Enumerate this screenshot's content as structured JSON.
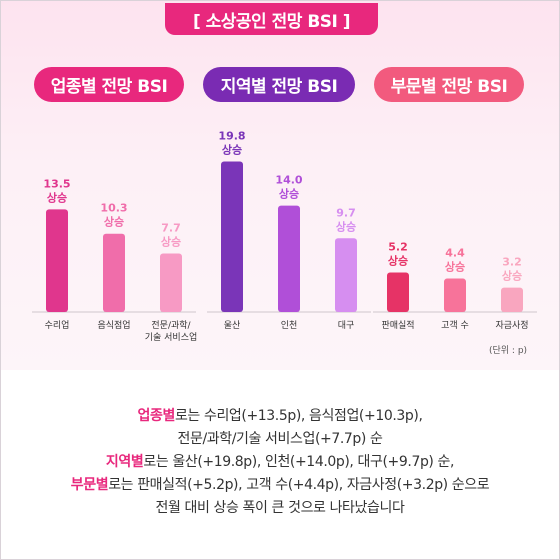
{
  "title": "[ 소상공인 전망 BSI ]",
  "tabs": {
    "industry": "업종별 전망 BSI",
    "region": "지역별 전망 BSI",
    "sector": "부문별 전망 BSI"
  },
  "unit": "(단위 : p)",
  "rise_label": "상승",
  "chart_data": {
    "type": "bar",
    "groups": [
      {
        "name": "업종별 전망 BSI",
        "categories": [
          "수리업",
          "음식점업",
          "전문/과학/기술 서비스업"
        ],
        "category_lines": [
          [
            "수리업"
          ],
          [
            "음식점업"
          ],
          [
            "전문/과학/",
            "기술 서비스업"
          ]
        ],
        "values": [
          13.5,
          10.3,
          7.7
        ],
        "colors": [
          "#e0368d",
          "#f06daa",
          "#f79ac4"
        ],
        "label_colors": [
          "#e0368d",
          "#f06daa",
          "#f79ac4"
        ]
      },
      {
        "name": "지역별 전망 BSI",
        "categories": [
          "울산",
          "인천",
          "대구"
        ],
        "category_lines": [
          [
            "울산"
          ],
          [
            "인천"
          ],
          [
            "대구"
          ]
        ],
        "values": [
          19.8,
          14.0,
          9.7
        ],
        "colors": [
          "#7a35b8",
          "#b04fd8",
          "#d68ef0"
        ],
        "label_colors": [
          "#7a35b8",
          "#b04fd8",
          "#d68ef0"
        ]
      },
      {
        "name": "부문별 전망 BSI",
        "categories": [
          "판매실적",
          "고객 수",
          "자금사정"
        ],
        "category_lines": [
          [
            "판매실적"
          ],
          [
            "고객 수"
          ],
          [
            "자금사정"
          ]
        ],
        "values": [
          5.2,
          4.4,
          3.2
        ],
        "colors": [
          "#e63366",
          "#f7739a",
          "#f9a6bf"
        ],
        "label_colors": [
          "#e63366",
          "#f7739a",
          "#f9a6bf"
        ]
      }
    ],
    "ylim": [
      0,
      20
    ],
    "grid": false
  },
  "description": {
    "line1": {
      "hl": "업종별",
      "text": "로는 수리업(+13.5p), 음식점업(+10.3p),"
    },
    "line2": {
      "text": "전문/과학/기술 서비스업(+7.7p) 순"
    },
    "line3": {
      "hl": "지역별",
      "text": "로는 울산(+19.8p), 인천(+14.0p), 대구(+9.7p) 순,"
    },
    "line4": {
      "hl": "부문별",
      "text": "로는 판매실적(+5.2p), 고객 수(+4.4p), 자금사정(+3.2p) 순으로"
    },
    "line5": {
      "text": "전월 대비 상승 폭이 큰 것으로 나타났습니다"
    }
  }
}
